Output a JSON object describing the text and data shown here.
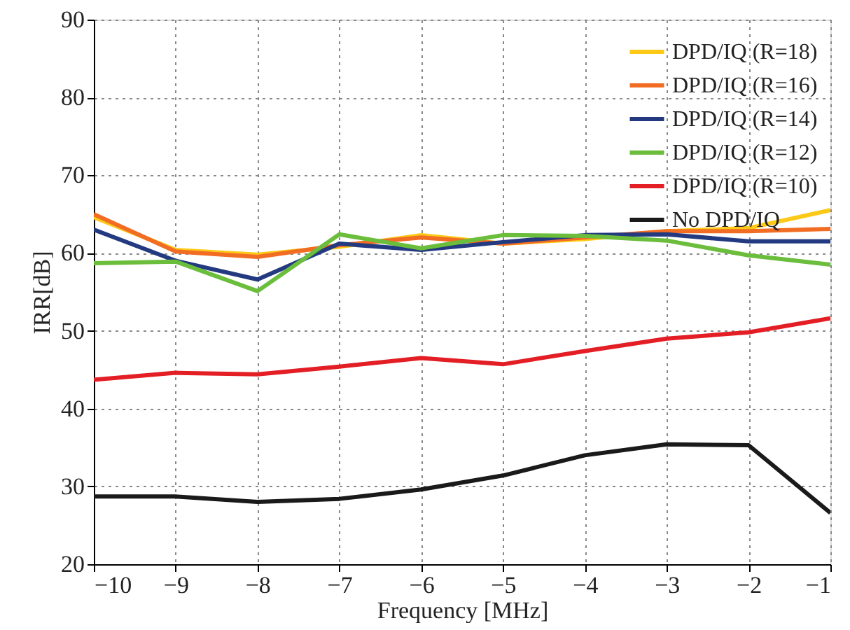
{
  "chart_data": {
    "type": "line",
    "xlabel": "Frequency [MHz]",
    "ylabel": "IRR[dB]",
    "x": [
      -10,
      -9,
      -8,
      -7,
      -6,
      -5,
      -4,
      -3,
      -2,
      -1
    ],
    "xlim": [
      -10,
      -1
    ],
    "xticks": [
      -10,
      -9,
      -8,
      -7,
      -6,
      -5,
      -4,
      -3,
      -2,
      -1
    ],
    "ylim": [
      20,
      90
    ],
    "yticks": [
      20,
      30,
      40,
      50,
      60,
      70,
      80,
      90
    ],
    "grid": true,
    "legend": "top right",
    "marker": "none",
    "line_style": "solid",
    "series": [
      {
        "name": "DPD/IQ (R=18)",
        "color": "#fcc917",
        "values": [
          64.6,
          60.4,
          59.8,
          60.8,
          62.3,
          61.2,
          61.8,
          62.8,
          63.2,
          65.5
        ]
      },
      {
        "name": "DPD/IQ (R=16)",
        "color": "#f26d24",
        "values": [
          65.0,
          60.2,
          59.5,
          61.0,
          62.0,
          61.2,
          62.0,
          62.8,
          62.8,
          63.1
        ]
      },
      {
        "name": "DPD/IQ (R=14)",
        "color": "#233a80",
        "values": [
          63.0,
          59.0,
          56.6,
          61.2,
          60.4,
          61.4,
          62.3,
          62.4,
          61.5,
          61.5
        ]
      },
      {
        "name": "DPD/IQ (R=12)",
        "color": "#6bbd3c",
        "values": [
          58.7,
          58.9,
          55.1,
          62.4,
          60.6,
          62.3,
          62.2,
          61.6,
          59.7,
          58.5
        ]
      },
      {
        "name": "DPD/IQ (R=10)",
        "color": "#e31e25",
        "values": [
          43.7,
          44.6,
          44.4,
          45.4,
          46.5,
          45.7,
          47.4,
          49.0,
          49.8,
          51.6
        ]
      },
      {
        "name": "No DPD/IQ",
        "color": "#1a1a1a",
        "values": [
          28.7,
          28.7,
          28.0,
          28.4,
          29.6,
          31.4,
          34.0,
          35.4,
          35.3,
          26.6
        ]
      }
    ]
  }
}
